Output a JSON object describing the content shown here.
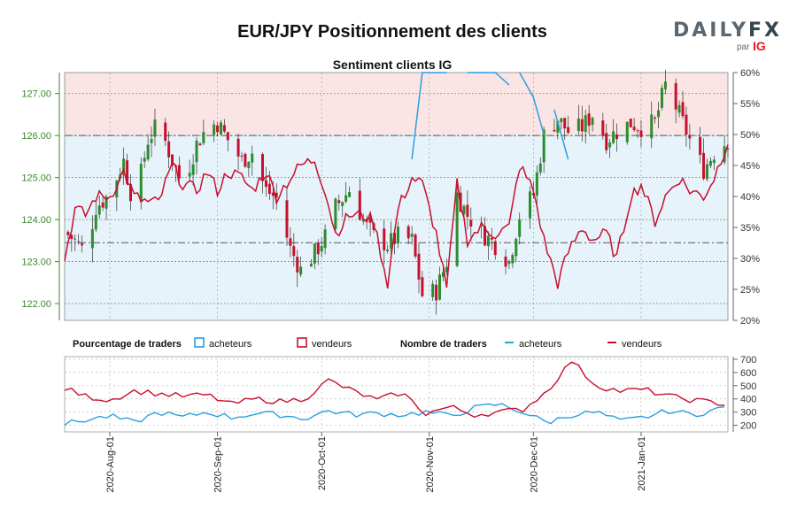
{
  "title": "EUR/JPY Positionnement des clients",
  "subtitle": "Sentiment clients IG",
  "brand": {
    "daily": "DAILY",
    "fx": "FX",
    "par": "par",
    "ig": "IG"
  },
  "colors": {
    "buyers": "#29a0e0",
    "sellers": "#c8102e",
    "bull": "#2e8b2e",
    "bear": "#c8102e",
    "price_axis": "#3a8a2a",
    "sell_zone": "#fbe4e4",
    "buy_zone": "#e6f3fa"
  },
  "legend": {
    "pct_title": "Pourcentage de traders",
    "pct_buyers": "acheteurs",
    "pct_sellers": "vendeurs",
    "count_title": "Nombre de traders",
    "count_buyers": "acheteurs",
    "count_sellers": "vendeurs"
  },
  "chart_data": [
    {
      "type": "candlestick",
      "title": "Sentiment clients IG",
      "x_range": [
        "2020-07-19",
        "2021-01-26"
      ],
      "y_left_ticks": [
        "122.00",
        "123.00",
        "124.00",
        "125.00",
        "126.00",
        "127.00"
      ],
      "y_left_range": [
        121.6,
        127.5
      ],
      "y_right_ticks": [
        "20%",
        "25%",
        "30%",
        "35%",
        "40%",
        "45%",
        "50%",
        "55%",
        "60%"
      ],
      "y_right_range": [
        20,
        60
      ],
      "reference_lines": [
        126.0,
        123.45
      ],
      "price_close_anchors": [
        [
          "2020-07-19",
          123.7
        ],
        [
          "2020-07-22",
          123.5
        ],
        [
          "2020-07-25",
          123.2
        ],
        [
          "2020-07-28",
          124.3
        ],
        [
          "2020-08-01",
          124.6
        ],
        [
          "2020-08-05",
          125.4
        ],
        [
          "2020-08-08",
          124.3
        ],
        [
          "2020-08-12",
          125.9
        ],
        [
          "2020-08-15",
          126.3
        ],
        [
          "2020-08-19",
          125.4
        ],
        [
          "2020-08-22",
          124.8
        ],
        [
          "2020-08-26",
          125.8
        ],
        [
          "2020-08-29",
          126.2
        ],
        [
          "2020-09-01",
          126.3
        ],
        [
          "2020-09-04",
          125.9
        ],
        [
          "2020-09-08",
          125.4
        ],
        [
          "2020-09-11",
          125.6
        ],
        [
          "2020-09-15",
          124.7
        ],
        [
          "2020-09-18",
          124.5
        ],
        [
          "2020-09-22",
          123.3
        ],
        [
          "2020-09-25",
          122.8
        ],
        [
          "2020-09-29",
          123.2
        ],
        [
          "2020-10-02",
          123.6
        ],
        [
          "2020-10-05",
          124.3
        ],
        [
          "2020-10-09",
          124.7
        ],
        [
          "2020-10-13",
          124.0
        ],
        [
          "2020-10-16",
          123.6
        ],
        [
          "2020-10-20",
          123.4
        ],
        [
          "2020-10-23",
          123.6
        ],
        [
          "2020-10-27",
          123.5
        ],
        [
          "2020-10-30",
          122.2
        ],
        [
          "2020-11-03",
          122.3
        ],
        [
          "2020-11-06",
          123.0
        ],
        [
          "2020-11-09",
          124.6
        ],
        [
          "2020-11-12",
          124.1
        ],
        [
          "2020-11-16",
          123.7
        ],
        [
          "2020-11-20",
          123.4
        ],
        [
          "2020-11-24",
          123.0
        ],
        [
          "2020-11-27",
          124.1
        ],
        [
          "2020-12-01",
          124.6
        ],
        [
          "2020-12-04",
          126.0
        ],
        [
          "2020-12-08",
          126.4
        ],
        [
          "2020-12-11",
          126.1
        ],
        [
          "2020-12-15",
          126.2
        ],
        [
          "2020-12-18",
          126.5
        ],
        [
          "2020-12-22",
          125.9
        ],
        [
          "2020-12-25",
          126.1
        ],
        [
          "2020-12-29",
          126.3
        ],
        [
          "2021-01-01",
          126.2
        ],
        [
          "2021-01-05",
          126.3
        ],
        [
          "2021-01-08",
          127.2
        ],
        [
          "2021-01-12",
          126.5
        ],
        [
          "2021-01-15",
          125.9
        ],
        [
          "2021-01-19",
          125.2
        ],
        [
          "2021-01-22",
          125.6
        ],
        [
          "2021-01-26",
          125.9
        ]
      ],
      "pct_sellers_anchors": [
        [
          "2020-07-19",
          30
        ],
        [
          "2020-07-22",
          38
        ],
        [
          "2020-07-25",
          37
        ],
        [
          "2020-07-28",
          40
        ],
        [
          "2020-08-01",
          40
        ],
        [
          "2020-08-05",
          44
        ],
        [
          "2020-08-08",
          40
        ],
        [
          "2020-08-12",
          39
        ],
        [
          "2020-08-15",
          39
        ],
        [
          "2020-08-19",
          45
        ],
        [
          "2020-08-22",
          42
        ],
        [
          "2020-08-26",
          41
        ],
        [
          "2020-08-29",
          44
        ],
        [
          "2020-09-01",
          41
        ],
        [
          "2020-09-04",
          44
        ],
        [
          "2020-09-08",
          43
        ],
        [
          "2020-09-11",
          41
        ],
        [
          "2020-09-15",
          44
        ],
        [
          "2020-09-18",
          40
        ],
        [
          "2020-09-22",
          43
        ],
        [
          "2020-09-25",
          45
        ],
        [
          "2020-09-29",
          46
        ],
        [
          "2020-10-02",
          41
        ],
        [
          "2020-10-05",
          34
        ],
        [
          "2020-10-09",
          37
        ],
        [
          "2020-10-13",
          37
        ],
        [
          "2020-10-16",
          36
        ],
        [
          "2020-10-20",
          26
        ],
        [
          "2020-10-23",
          38
        ],
        [
          "2020-10-27",
          43
        ],
        [
          "2020-10-30",
          42
        ],
        [
          "2020-11-03",
          34
        ],
        [
          "2020-11-06",
          25
        ],
        [
          "2020-11-09",
          42
        ],
        [
          "2020-11-12",
          33
        ],
        [
          "2020-11-16",
          35
        ],
        [
          "2020-11-20",
          34
        ],
        [
          "2020-11-24",
          35
        ],
        [
          "2020-11-27",
          45
        ],
        [
          "2020-12-01",
          41
        ],
        [
          "2020-12-04",
          33
        ],
        [
          "2020-12-08",
          26
        ],
        [
          "2020-12-11",
          31
        ],
        [
          "2020-12-15",
          35
        ],
        [
          "2020-12-18",
          33
        ],
        [
          "2020-12-22",
          34
        ],
        [
          "2020-12-25",
          30
        ],
        [
          "2020-12-29",
          40
        ],
        [
          "2021-01-01",
          42
        ],
        [
          "2021-01-05",
          36
        ],
        [
          "2021-01-08",
          40
        ],
        [
          "2021-01-12",
          43
        ],
        [
          "2021-01-15",
          41
        ],
        [
          "2021-01-19",
          40
        ],
        [
          "2021-01-22",
          43
        ],
        [
          "2021-01-26",
          49
        ]
      ],
      "pct_buyers_segments": [
        [
          [
            "2020-10-27",
            46
          ],
          [
            "2020-10-30",
            64
          ],
          [
            "2020-11-03",
            68
          ],
          [
            "2020-11-06",
            62
          ]
        ],
        [
          [
            "2020-11-12",
            72
          ],
          [
            "2020-11-16",
            76
          ],
          [
            "2020-11-20",
            60
          ],
          [
            "2020-11-24",
            58
          ]
        ],
        [
          [
            "2020-11-27",
            62
          ],
          [
            "2020-12-01",
            56
          ],
          [
            "2020-12-04",
            50
          ]
        ],
        [
          [
            "2020-12-07",
            54
          ],
          [
            "2020-12-09",
            50
          ],
          [
            "2020-12-11",
            46
          ]
        ]
      ]
    },
    {
      "type": "line",
      "y_ticks": [
        "200",
        "300",
        "400",
        "500",
        "600",
        "700"
      ],
      "y_range": [
        150,
        720
      ],
      "x_ticks": [
        "2020-Aug-01",
        "2020-Sep-01",
        "2020-Oct-01",
        "2020-Nov-01",
        "2020-Dec-01",
        "2021-Jan-01"
      ],
      "x_tick_dates": [
        "2020-08-01",
        "2020-09-01",
        "2020-10-01",
        "2020-11-01",
        "2020-12-01",
        "2021-01-01"
      ],
      "series": [
        {
          "name": "acheteurs",
          "anchors": [
            [
              "2020-07-19",
              210
            ],
            [
              "2020-07-25",
              240
            ],
            [
              "2020-08-01",
              270
            ],
            [
              "2020-08-08",
              220
            ],
            [
              "2020-08-15",
              300
            ],
            [
              "2020-08-22",
              260
            ],
            [
              "2020-08-29",
              300
            ],
            [
              "2020-09-05",
              260
            ],
            [
              "2020-09-12",
              290
            ],
            [
              "2020-09-19",
              280
            ],
            [
              "2020-09-26",
              250
            ],
            [
              "2020-10-03",
              310
            ],
            [
              "2020-10-10",
              280
            ],
            [
              "2020-10-17",
              290
            ],
            [
              "2020-10-24",
              280
            ],
            [
              "2020-10-31",
              300
            ],
            [
              "2020-11-07",
              270
            ],
            [
              "2020-11-14",
              330
            ],
            [
              "2020-11-21",
              360
            ],
            [
              "2020-11-28",
              300
            ],
            [
              "2020-12-05",
              220
            ],
            [
              "2020-12-12",
              280
            ],
            [
              "2020-12-19",
              300
            ],
            [
              "2020-12-26",
              230
            ],
            [
              "2021-01-02",
              260
            ],
            [
              "2021-01-09",
              310
            ],
            [
              "2021-01-16",
              280
            ],
            [
              "2021-01-26",
              340
            ]
          ]
        },
        {
          "name": "vendeurs",
          "anchors": [
            [
              "2020-07-19",
              480
            ],
            [
              "2020-07-25",
              420
            ],
            [
              "2020-08-01",
              390
            ],
            [
              "2020-08-08",
              460
            ],
            [
              "2020-08-15",
              440
            ],
            [
              "2020-08-22",
              420
            ],
            [
              "2020-08-29",
              430
            ],
            [
              "2020-09-05",
              360
            ],
            [
              "2020-09-12",
              400
            ],
            [
              "2020-09-19",
              380
            ],
            [
              "2020-09-26",
              400
            ],
            [
              "2020-10-03",
              540
            ],
            [
              "2020-10-10",
              460
            ],
            [
              "2020-10-17",
              390
            ],
            [
              "2020-10-24",
              450
            ],
            [
              "2020-10-31",
              290
            ],
            [
              "2020-11-07",
              340
            ],
            [
              "2020-11-14",
              280
            ],
            [
              "2020-11-21",
              300
            ],
            [
              "2020-11-28",
              320
            ],
            [
              "2020-12-05",
              460
            ],
            [
              "2020-12-12",
              690
            ],
            [
              "2020-12-19",
              500
            ],
            [
              "2020-12-26",
              460
            ],
            [
              "2021-01-02",
              470
            ],
            [
              "2021-01-09",
              420
            ],
            [
              "2021-01-16",
              390
            ],
            [
              "2021-01-26",
              360
            ]
          ]
        }
      ]
    }
  ]
}
